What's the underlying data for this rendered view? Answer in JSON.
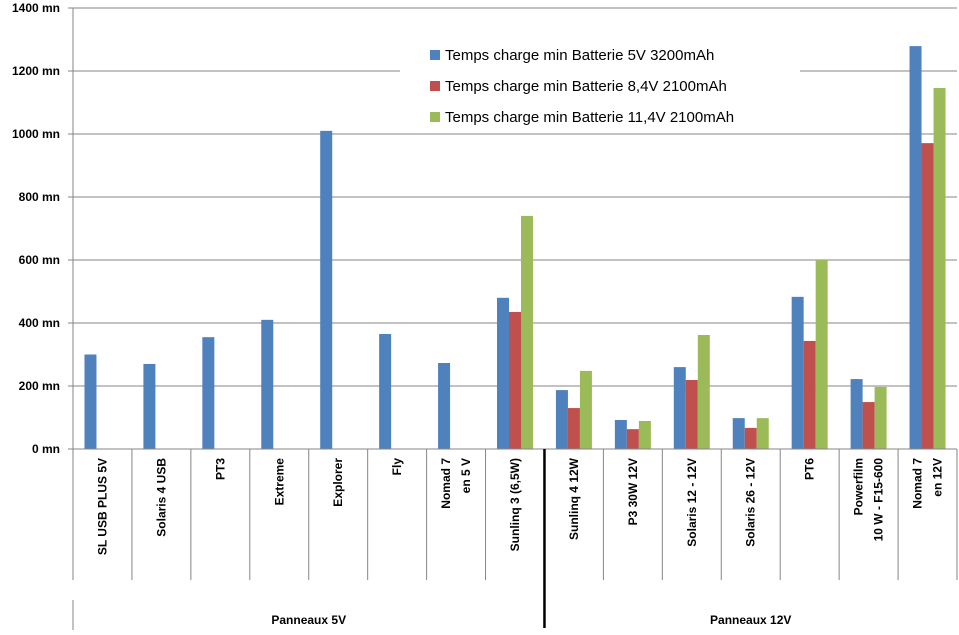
{
  "chart_data": {
    "type": "bar",
    "title": "",
    "xlabel": "",
    "ylabel": "",
    "ylim": [
      0,
      1400
    ],
    "yticks": [
      0,
      200,
      400,
      600,
      800,
      1000,
      1200,
      1400
    ],
    "ytick_suffix": " mn",
    "grid": true,
    "legend_position": "top-center",
    "categories": [
      "SL USB PLUS 5V",
      "Solaris 4 USB",
      "PT3",
      "Extreme",
      "Explorer",
      "Fly",
      "Nomad 7\nen 5 V",
      "Sunlinq 3 (6,5W)",
      "Sunlinq 4 12W",
      "P3 30W 12V",
      "Solaris 12 - 12V",
      "Solaris 26 - 12V",
      "PT6",
      "Powerfilm\n10 W - F15-600",
      "Nomad 7\nen 12V"
    ],
    "groups": [
      {
        "label": "Panneaux 5V",
        "count": 8
      },
      {
        "label": "Panneaux 12V",
        "count": 7
      }
    ],
    "series": [
      {
        "name": "Temps charge min Batterie 5V 3200mAh",
        "color": "#4F81BD",
        "values": [
          300,
          270,
          355,
          410,
          1010,
          365,
          273,
          480,
          187,
          92,
          260,
          98,
          483,
          222,
          1279
        ]
      },
      {
        "name": "Temps charge min Batterie 8,4V 2100mAh",
        "color": "#C0504D",
        "values": [
          null,
          null,
          null,
          null,
          null,
          null,
          null,
          435,
          130,
          63,
          219,
          67,
          343,
          149,
          971
        ]
      },
      {
        "name": "Temps charge min Batterie 11,4V 2100mAh",
        "color": "#9BBB59",
        "values": [
          null,
          null,
          null,
          null,
          null,
          null,
          null,
          740,
          248,
          89,
          362,
          98,
          600,
          197,
          1146
        ]
      }
    ]
  }
}
